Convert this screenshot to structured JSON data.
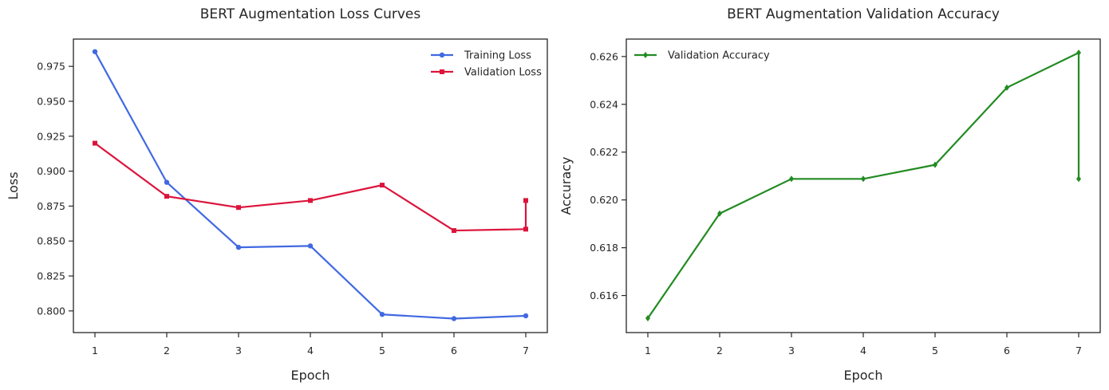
{
  "chart_data": [
    {
      "type": "line",
      "title": "BERT Augmentation Loss Curves",
      "xlabel": "Epoch",
      "ylabel": "Loss",
      "x": [
        1,
        2,
        3,
        4,
        5,
        6,
        7,
        7
      ],
      "xticks": [
        1,
        2,
        3,
        4,
        5,
        6,
        7
      ],
      "yticks": [
        0.8,
        0.825,
        0.85,
        0.875,
        0.9,
        0.925,
        0.95,
        0.975
      ],
      "ytick_labels": [
        "0.800",
        "0.825",
        "0.850",
        "0.875",
        "0.900",
        "0.925",
        "0.950",
        "0.975"
      ],
      "xlim": [
        0.7,
        7.3
      ],
      "ylim": [
        0.7845,
        0.9945
      ],
      "legend_position": "top-right",
      "grid": false,
      "series": [
        {
          "name": "Training Loss",
          "color": "#4169e1",
          "marker": "circle",
          "x": [
            1,
            2,
            3,
            4,
            5,
            6,
            7
          ],
          "values": [
            0.9855,
            0.892,
            0.8455,
            0.8465,
            0.7975,
            0.7945,
            0.7965
          ]
        },
        {
          "name": "Validation Loss",
          "color": "#dc143c",
          "marker": "square",
          "x": [
            1,
            2,
            3,
            4,
            5,
            6,
            7,
            7
          ],
          "values": [
            0.92,
            0.882,
            0.874,
            0.879,
            0.89,
            0.8575,
            0.8585,
            0.879
          ]
        }
      ]
    },
    {
      "type": "line",
      "title": "BERT Augmentation Validation Accuracy",
      "xlabel": "Epoch",
      "ylabel": "Accuracy",
      "xticks": [
        1,
        2,
        3,
        4,
        5,
        6,
        7
      ],
      "yticks": [
        0.616,
        0.618,
        0.62,
        0.622,
        0.624,
        0.626
      ],
      "ytick_labels": [
        "0.616",
        "0.618",
        "0.620",
        "0.622",
        "0.624",
        "0.626"
      ],
      "xlim": [
        0.7,
        7.3
      ],
      "ylim": [
        0.61445,
        0.62673
      ],
      "legend_position": "top-left",
      "grid": false,
      "series": [
        {
          "name": "Validation Accuracy",
          "color": "#228b22",
          "marker": "diamond",
          "x": [
            1,
            2,
            3,
            4,
            5,
            6,
            7,
            7
          ],
          "values": [
            0.61505,
            0.61943,
            0.62088,
            0.62088,
            0.62147,
            0.6247,
            0.62616,
            0.62088
          ]
        }
      ]
    }
  ]
}
